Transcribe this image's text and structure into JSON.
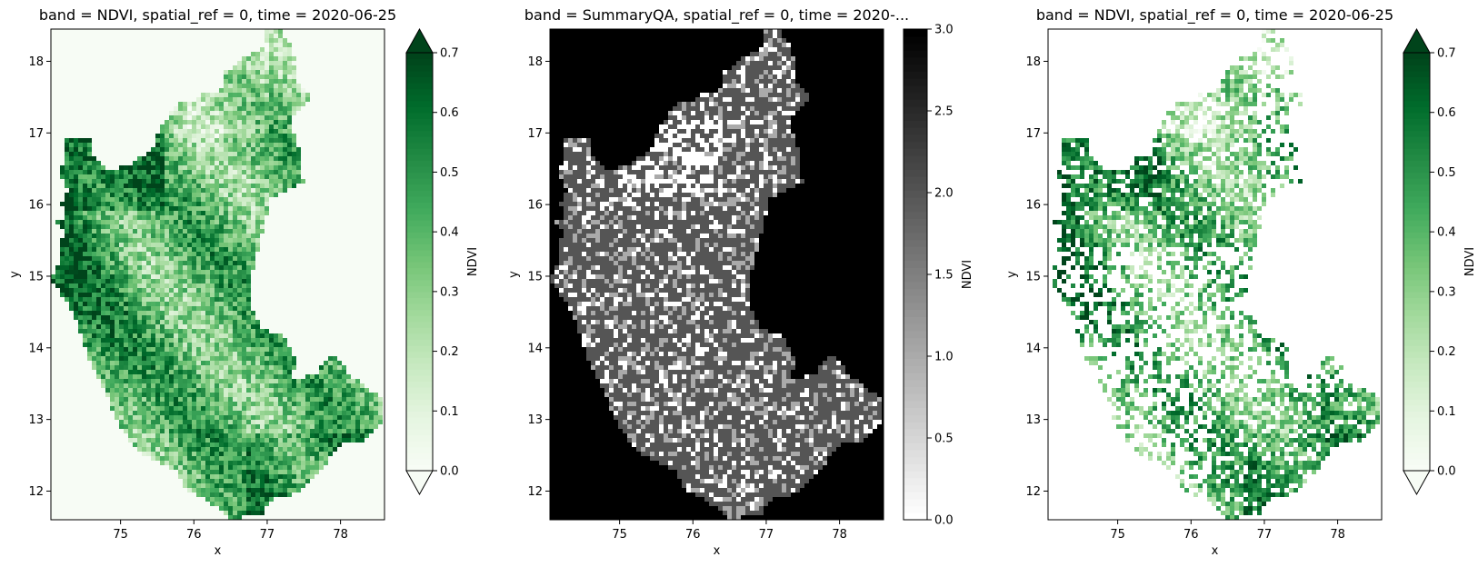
{
  "chart_data": [
    {
      "type": "heatmap",
      "title": "band = NDVI, spatial_ref = 0, time = 2020-06-25",
      "xlabel": "x",
      "ylabel": "y",
      "xlim": [
        74.05,
        78.6
      ],
      "ylim": [
        11.6,
        18.45
      ],
      "xticks": [
        "75",
        "76",
        "77",
        "78"
      ],
      "yticks": [
        "12",
        "13",
        "14",
        "15",
        "16",
        "17",
        "18"
      ],
      "colorbar": {
        "label": "NDVI",
        "colormap": "Greens",
        "range": [
          0.0,
          0.7
        ],
        "extend": "both",
        "ticks": [
          "0.0",
          "0.1",
          "0.2",
          "0.3",
          "0.4",
          "0.5",
          "0.6",
          "0.7"
        ]
      },
      "background_color": "#f7fcf5",
      "masked": false
    },
    {
      "type": "heatmap",
      "title": "band = SummaryQA, spatial_ref = 0, time = 2020-...",
      "xlabel": "x",
      "ylabel": "y",
      "xlim": [
        74.05,
        78.6
      ],
      "ylim": [
        11.6,
        18.45
      ],
      "xticks": [
        "75",
        "76",
        "77",
        "78"
      ],
      "yticks": [
        "12",
        "13",
        "14",
        "15",
        "16",
        "17",
        "18"
      ],
      "colorbar": {
        "label": "NDVI",
        "colormap": "Greys",
        "range": [
          0.0,
          3.0
        ],
        "extend": "neither",
        "ticks": [
          "0.0",
          "0.5",
          "1.0",
          "1.5",
          "2.0",
          "2.5",
          "3.0"
        ]
      },
      "background_color": "#000000",
      "masked": false
    },
    {
      "type": "heatmap",
      "title": "band = NDVI, spatial_ref = 0, time = 2020-06-25",
      "xlabel": "x",
      "ylabel": "y",
      "xlim": [
        74.05,
        78.6
      ],
      "ylim": [
        11.6,
        18.45
      ],
      "xticks": [
        "75",
        "76",
        "77",
        "78"
      ],
      "yticks": [
        "12",
        "13",
        "14",
        "15",
        "16",
        "17",
        "18"
      ],
      "colorbar": {
        "label": "NDVI",
        "colormap": "Greens",
        "range": [
          0.0,
          0.7
        ],
        "extend": "both",
        "ticks": [
          "0.0",
          "0.1",
          "0.2",
          "0.3",
          "0.4",
          "0.5",
          "0.6",
          "0.7"
        ]
      },
      "background_color": "#ffffff",
      "masked": true
    }
  ]
}
